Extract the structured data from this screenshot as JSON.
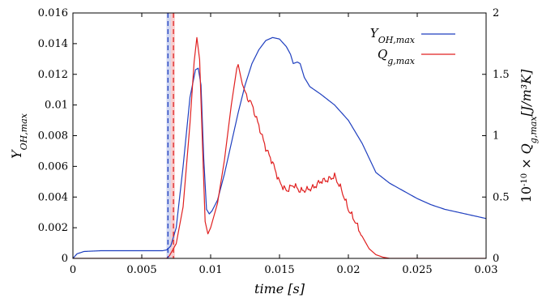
{
  "chart_data": {
    "type": "line",
    "xlabel": "time [s]",
    "ylabel_left": "Y_OH,max",
    "ylabel_right": "10^-10 × Q_g,max [J/m^3K]",
    "xlim": [
      0,
      0.03
    ],
    "ylim_left": [
      0,
      0.016
    ],
    "ylim_right": [
      0,
      2
    ],
    "x_ticks": [
      "0",
      "0.005",
      "0.01",
      "0.015",
      "0.02",
      "0.025",
      "0.03"
    ],
    "y_left_ticks": [
      "0",
      "0.002",
      "0.004",
      "0.006",
      "0.008",
      "0.01",
      "0.012",
      "0.014",
      "0.016"
    ],
    "y_right_ticks": [
      "0",
      "0.5",
      "1",
      "1.5",
      "2"
    ],
    "legend_position": "top-right",
    "vlines": [
      {
        "x": 0.0069,
        "color": "#1f3fbf",
        "style": "dashed",
        "band": [
          0.0068,
          0.0071
        ]
      },
      {
        "x": 0.0073,
        "color": "#e02020",
        "style": "dashed",
        "band": [
          0.0071,
          0.0074
        ]
      }
    ],
    "series": [
      {
        "name": "Y_OH,max",
        "axis": "left",
        "color": "#1f3fbf",
        "points": [
          [
            0,
            0
          ],
          [
            0.0003,
            0.0003
          ],
          [
            0.0008,
            0.00045
          ],
          [
            0.002,
            0.0005
          ],
          [
            0.004,
            0.0005
          ],
          [
            0.0065,
            0.0005
          ],
          [
            0.0068,
            0.00055
          ],
          [
            0.0071,
            0.0008
          ],
          [
            0.0075,
            0.002
          ],
          [
            0.008,
            0.006
          ],
          [
            0.0085,
            0.0105
          ],
          [
            0.0089,
            0.0123
          ],
          [
            0.0091,
            0.0124
          ],
          [
            0.0093,
            0.0113
          ],
          [
            0.0095,
            0.0065
          ],
          [
            0.0097,
            0.0032
          ],
          [
            0.0099,
            0.0029
          ],
          [
            0.0101,
            0.0031
          ],
          [
            0.0105,
            0.0038
          ],
          [
            0.011,
            0.0055
          ],
          [
            0.0115,
            0.0075
          ],
          [
            0.012,
            0.0095
          ],
          [
            0.0125,
            0.0113
          ],
          [
            0.013,
            0.0127
          ],
          [
            0.0135,
            0.0136
          ],
          [
            0.014,
            0.0142
          ],
          [
            0.0145,
            0.0144
          ],
          [
            0.015,
            0.0143
          ],
          [
            0.0155,
            0.0138
          ],
          [
            0.0158,
            0.0133
          ],
          [
            0.016,
            0.0127
          ],
          [
            0.0163,
            0.0128
          ],
          [
            0.0165,
            0.0127
          ],
          [
            0.0168,
            0.0118
          ],
          [
            0.0172,
            0.0112
          ],
          [
            0.018,
            0.0107
          ],
          [
            0.019,
            0.01
          ],
          [
            0.02,
            0.009
          ],
          [
            0.021,
            0.0075
          ],
          [
            0.022,
            0.0056
          ],
          [
            0.023,
            0.0049
          ],
          [
            0.024,
            0.0044
          ],
          [
            0.025,
            0.0039
          ],
          [
            0.026,
            0.0035
          ],
          [
            0.027,
            0.0032
          ],
          [
            0.028,
            0.003
          ],
          [
            0.029,
            0.0028
          ],
          [
            0.03,
            0.0026
          ]
        ]
      },
      {
        "name": "Q_g,max",
        "axis": "right",
        "color": "#e02020",
        "points": [
          [
            0,
            0
          ],
          [
            0.0068,
            0
          ],
          [
            0.007,
            0.02
          ],
          [
            0.0075,
            0.12
          ],
          [
            0.008,
            0.42
          ],
          [
            0.0085,
            1.1
          ],
          [
            0.0088,
            1.6
          ],
          [
            0.009,
            1.8
          ],
          [
            0.0092,
            1.62
          ],
          [
            0.0094,
            0.95
          ],
          [
            0.0096,
            0.3
          ],
          [
            0.0098,
            0.2
          ],
          [
            0.01,
            0.25
          ],
          [
            0.0105,
            0.45
          ],
          [
            0.011,
            0.8
          ],
          [
            0.0115,
            1.25
          ],
          [
            0.0119,
            1.55
          ],
          [
            0.012,
            1.58
          ],
          [
            0.0123,
            1.42
          ],
          [
            0.0126,
            1.33
          ],
          [
            0.013,
            1.25
          ],
          [
            0.0135,
            1.08
          ],
          [
            0.014,
            0.9
          ],
          [
            0.0145,
            0.78
          ],
          [
            0.015,
            0.62
          ],
          [
            0.0155,
            0.55
          ],
          [
            0.016,
            0.6
          ],
          [
            0.0165,
            0.55
          ],
          [
            0.017,
            0.56
          ],
          [
            0.0175,
            0.58
          ],
          [
            0.018,
            0.63
          ],
          [
            0.0185,
            0.64
          ],
          [
            0.019,
            0.67
          ],
          [
            0.0195,
            0.56
          ],
          [
            0.02,
            0.4
          ],
          [
            0.0205,
            0.3
          ],
          [
            0.021,
            0.18
          ],
          [
            0.0215,
            0.08
          ],
          [
            0.022,
            0.03
          ],
          [
            0.0225,
            0.01
          ],
          [
            0.023,
            0
          ],
          [
            0.03,
            0
          ]
        ]
      }
    ]
  }
}
